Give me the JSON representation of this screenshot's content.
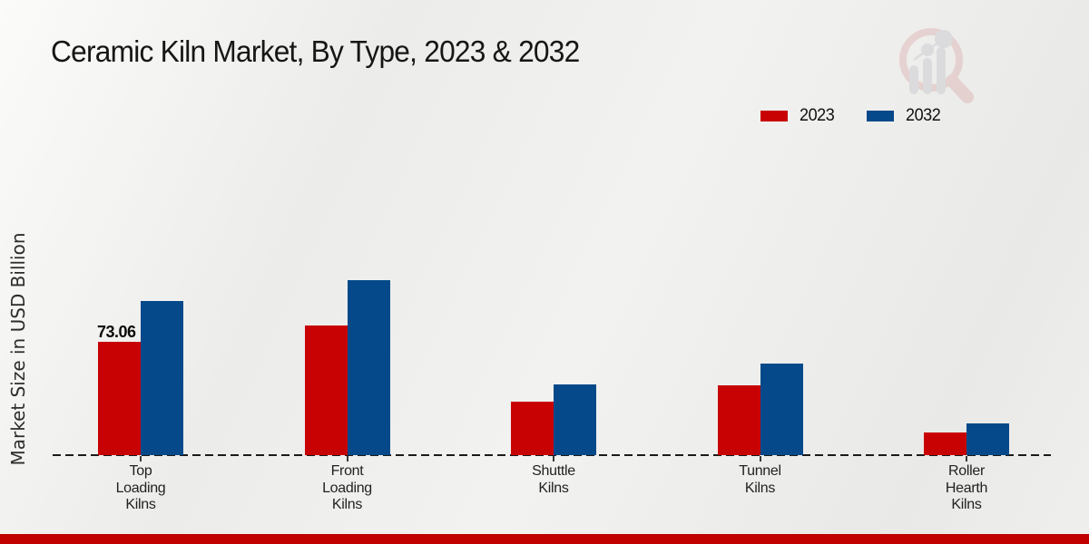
{
  "title": "Ceramic Kiln Market, By Type, 2023 & 2032",
  "ylabel": "Market Size in USD Billion",
  "legend": {
    "items": [
      {
        "label": "2023",
        "color": "#c80202"
      },
      {
        "label": "2032",
        "color": "#05498a"
      }
    ]
  },
  "footer": {
    "band_color": "#c10000"
  },
  "watermark_icon": "magnifier-bar-chart-logo",
  "chart_data": {
    "type": "bar",
    "title": "Ceramic Kiln Market, By Type, 2023 & 2032",
    "ylabel": "Market Size in USD Billion",
    "categories": [
      "Top Loading Kilns",
      "Front Loading Kilns",
      "Shuttle Kilns",
      "Tunnel Kilns",
      "Roller Hearth Kilns"
    ],
    "category_display": [
      "Top\nLoading\nKilns",
      "Front\nLoading\nKilns",
      "Shuttle\nKilns",
      "Tunnel\nKilns",
      "Roller\nHearth\nKilns"
    ],
    "series": [
      {
        "name": "2023",
        "color": "#c80202",
        "values": [
          73.06,
          83.6,
          34.2,
          45.0,
          14.9
        ]
      },
      {
        "name": "2032",
        "color": "#05498a",
        "values": [
          99.4,
          112.8,
          45.6,
          58.8,
          20.3
        ]
      }
    ],
    "data_labels": [
      {
        "series": "2023",
        "category": "Top Loading Kilns",
        "text": "73.06"
      }
    ],
    "ylim": [
      0,
      120
    ],
    "grid": false,
    "baseline_style": "dashed",
    "legend_position": "top-right",
    "units": "USD Billion"
  }
}
